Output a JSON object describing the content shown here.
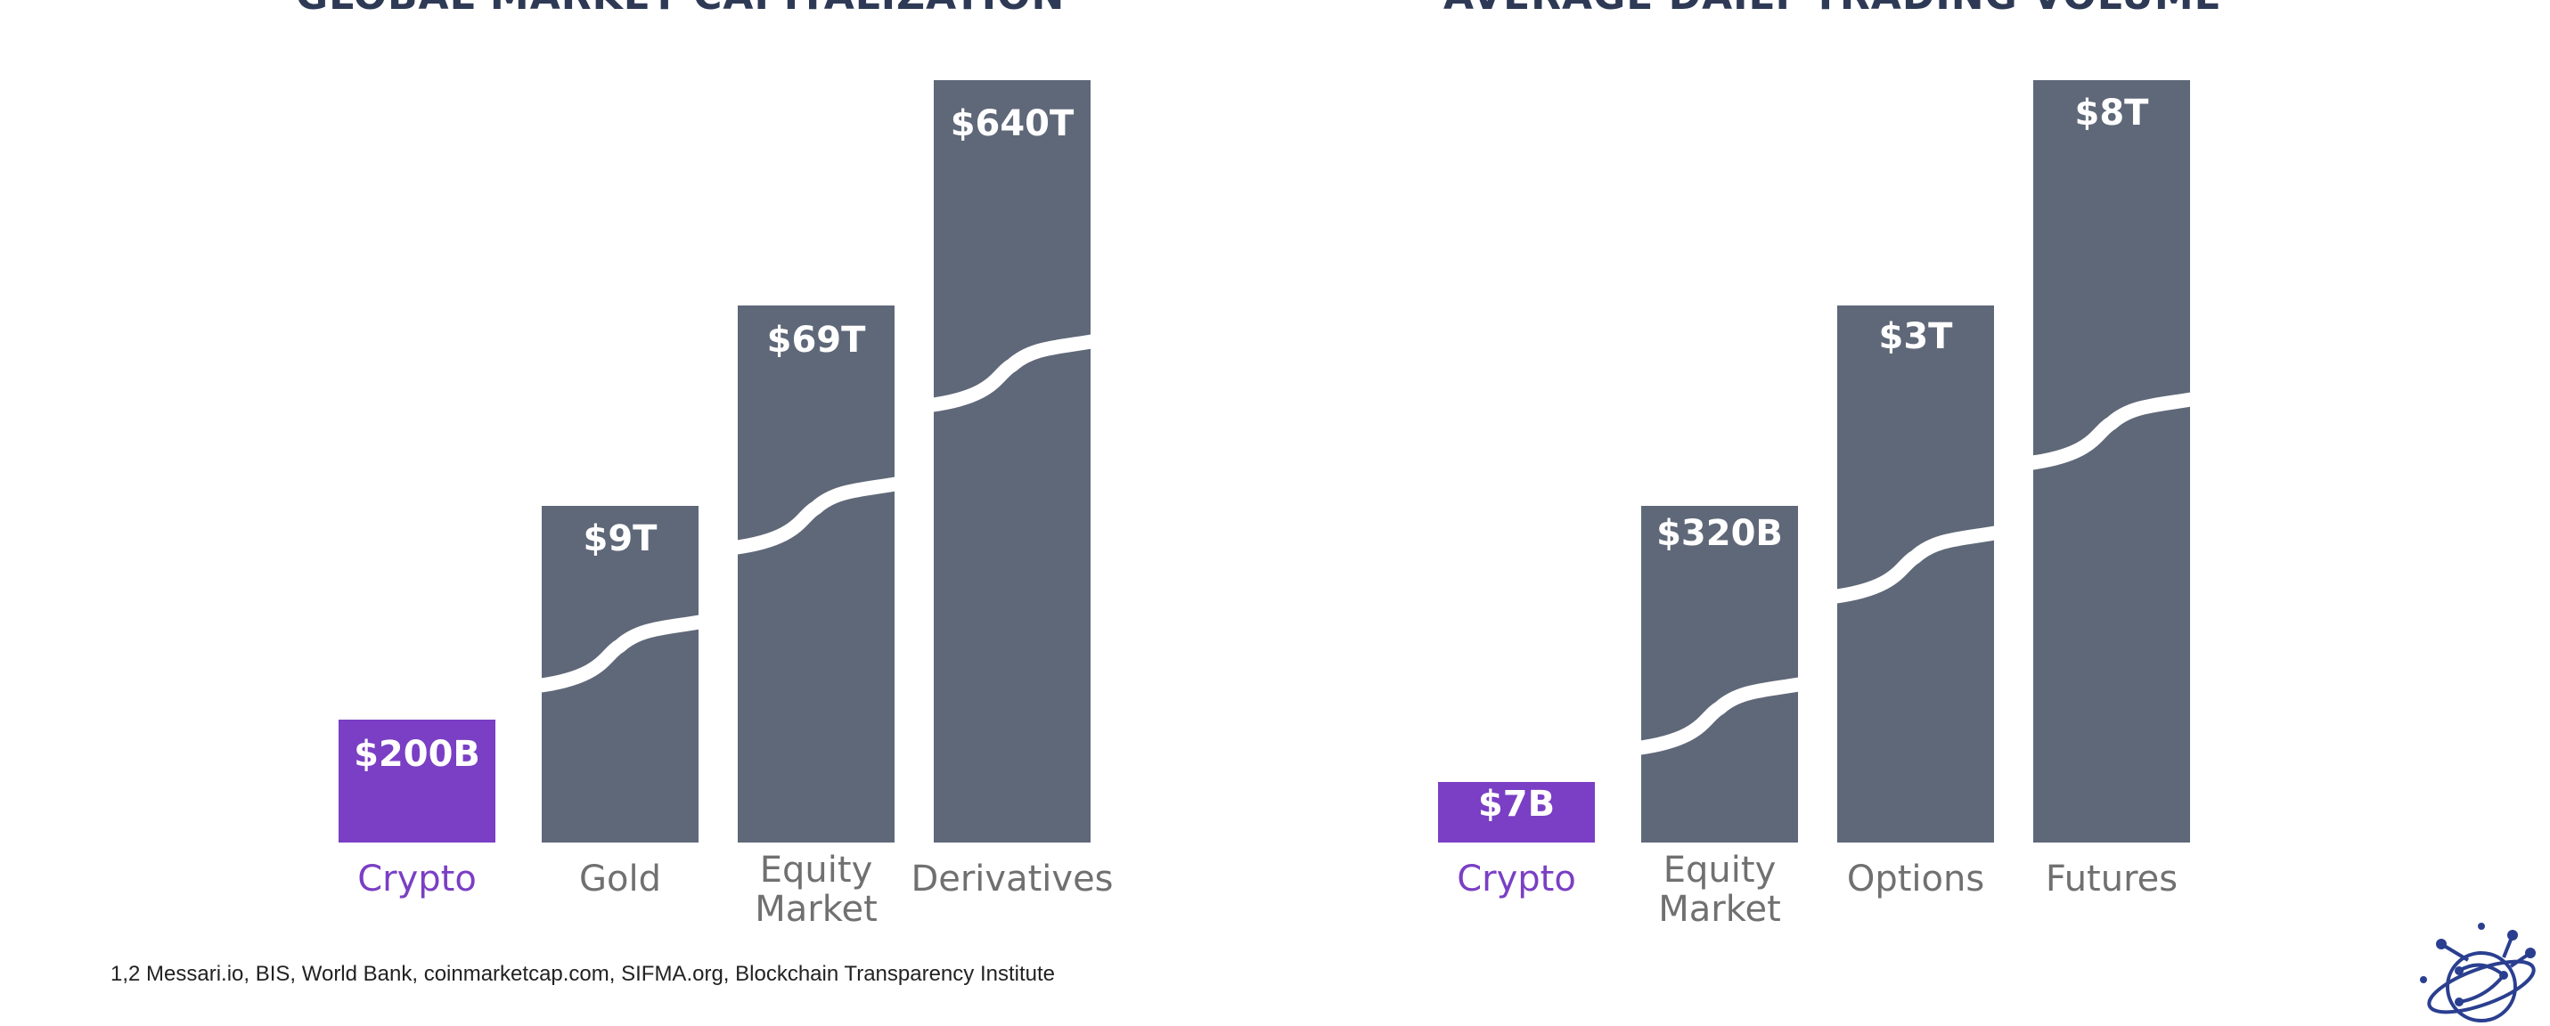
{
  "titles": {
    "left": "GLOBAL MARKET CAPITALIZATION",
    "right": "AVERAGE DAILY TRADING VOLUME"
  },
  "colors": {
    "highlight": "#7a3fc4",
    "bar": "#5f6878",
    "label_highlight": "#7a3fc4",
    "label": "#707070"
  },
  "chart_data": [
    {
      "type": "bar",
      "title": "GLOBAL MARKET CAPITALIZATION",
      "categories": [
        "Crypto",
        "Gold",
        "Equity\nMarket",
        "Derivatives"
      ],
      "values_label": [
        "$200B",
        "$9T",
        "$69T",
        "$640T"
      ],
      "values": [
        0.2,
        9,
        69,
        640
      ],
      "unit": "trillion USD",
      "highlight_index": 0,
      "axis_break": true
    },
    {
      "type": "bar",
      "title": "AVERAGE DAILY TRADING VOLUME",
      "categories": [
        "Crypto",
        "Equity\nMarket",
        "Options",
        "Futures"
      ],
      "values_label": [
        "$7B",
        "$320B",
        "$3T",
        "$8T"
      ],
      "values": [
        0.007,
        0.32,
        3,
        8
      ],
      "unit": "trillion USD",
      "highlight_index": 0,
      "axis_break": true
    }
  ],
  "footnote": "1,2 Messari.io, BIS, World Bank, coinmarketcap.com, SIFMA.org, Blockchain Transparency Institute",
  "logo_icon": "network-globe-logo-icon"
}
